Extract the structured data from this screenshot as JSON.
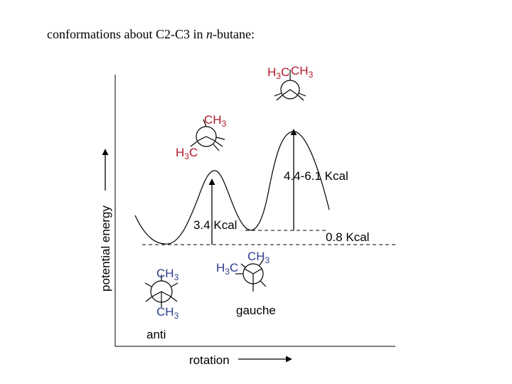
{
  "title": {
    "prefix": "conformations about C2-C3 in ",
    "italic": "n",
    "suffix": "-butane:"
  },
  "axes": {
    "y_label": "potential energy",
    "x_label": "rotation"
  },
  "energy_labels": {
    "first_barrier": "3.4 Kcal",
    "second_barrier": "4.4-6.1 Kcal",
    "gauche_offset": "0.8 Kcal"
  },
  "conformers": {
    "anti": {
      "name": "anti",
      "top_group": "CH",
      "top_sub": "3",
      "bottom_group": "CH",
      "bottom_sub": "3"
    },
    "gauche": {
      "name": "gauche",
      "left_group_a": "H",
      "left_group_sub": "3",
      "left_group_b": "C",
      "right_group": "CH",
      "right_sub": "3"
    },
    "eclipsed_partial": {
      "top_group": "CH",
      "top_sub": "3",
      "left_group_a": "H",
      "left_group_sub": "3",
      "left_group_b": "C"
    },
    "eclipsed_full": {
      "left_group_a": "H",
      "left_group_sub": "3",
      "left_group_b": "C",
      "right_group": "CH",
      "right_sub": "3"
    }
  },
  "colors": {
    "axis": "#000000",
    "curve": "#000000",
    "eclipsed_text": "#b2182b",
    "staggered_text": "#2c3e8c"
  }
}
